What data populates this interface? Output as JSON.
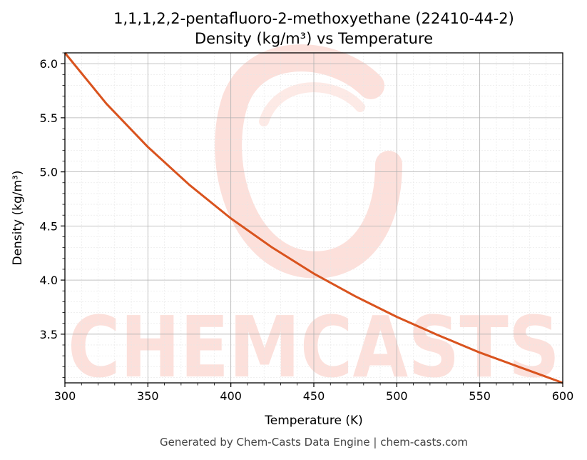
{
  "chart_data": {
    "type": "line",
    "title_line1": "1,1,1,2,2-pentafluoro-2-methoxyethane (22410-44-2)",
    "title_line2": "Density (kg/m³) vs Temperature",
    "xlabel": "Temperature (K)",
    "ylabel": "Density (kg/m³)",
    "xlim": [
      300,
      600
    ],
    "ylim": [
      3.05,
      6.1
    ],
    "x_ticks": [
      300,
      350,
      400,
      450,
      500,
      550,
      600
    ],
    "y_ticks": [
      3.5,
      4.0,
      4.5,
      5.0,
      5.5,
      6.0
    ],
    "x_tick_labels": [
      "300",
      "350",
      "400",
      "450",
      "500",
      "550",
      "600"
    ],
    "y_tick_labels": [
      "3.5",
      "4.0",
      "4.5",
      "5.0",
      "5.5",
      "6.0"
    ],
    "grid": true,
    "line_color": "#d9531e",
    "series": [
      {
        "x": [
          300,
          325,
          350,
          375,
          400,
          425,
          450,
          475,
          500,
          525,
          550,
          575,
          600
        ],
        "values": [
          6.1,
          5.63,
          5.23,
          4.88,
          4.57,
          4.3,
          4.06,
          3.85,
          3.66,
          3.49,
          3.33,
          3.19,
          3.05
        ]
      }
    ]
  },
  "watermark": {
    "text": "CHEMCASTS",
    "color": "#fbd6cf"
  },
  "footer": "Generated by Chem-Casts Data Engine | chem-casts.com"
}
